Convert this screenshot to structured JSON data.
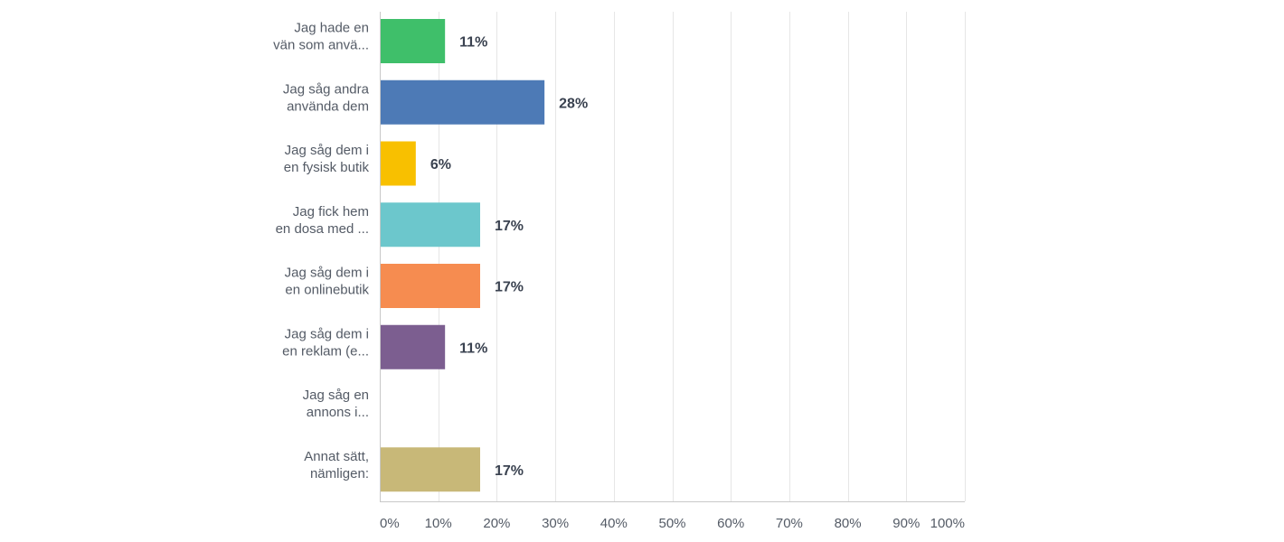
{
  "chart_data": {
    "type": "bar",
    "orientation": "horizontal",
    "categories": [
      [
        "Jag hade en",
        "vän som anvä..."
      ],
      [
        "Jag såg andra",
        "använda dem"
      ],
      [
        "Jag såg dem i",
        "en fysisk butik"
      ],
      [
        "Jag fick hem",
        "en dosa med ..."
      ],
      [
        "Jag såg dem i",
        "en onlinebutik"
      ],
      [
        "Jag såg dem i",
        "en reklam (e..."
      ],
      [
        "Jag såg en",
        "annons i..."
      ],
      [
        "Annat sätt,",
        "nämligen:"
      ]
    ],
    "values": [
      11,
      28,
      6,
      17,
      17,
      11,
      0,
      17
    ],
    "value_labels": [
      "11%",
      "28%",
      "6%",
      "17%",
      "17%",
      "11%",
      "",
      "17%"
    ],
    "colors": [
      "#3fbf6a",
      "#4d7ab6",
      "#f8c000",
      "#6cc7cc",
      "#f68c50",
      "#7c5e90",
      "#b0b0b0",
      "#c8b878"
    ],
    "xlim": [
      0,
      100
    ],
    "x_ticks": [
      "0%",
      "10%",
      "20%",
      "30%",
      "40%",
      "50%",
      "60%",
      "70%",
      "80%",
      "90%",
      "100%"
    ],
    "grid": true,
    "title": "",
    "xlabel": "",
    "ylabel": ""
  }
}
